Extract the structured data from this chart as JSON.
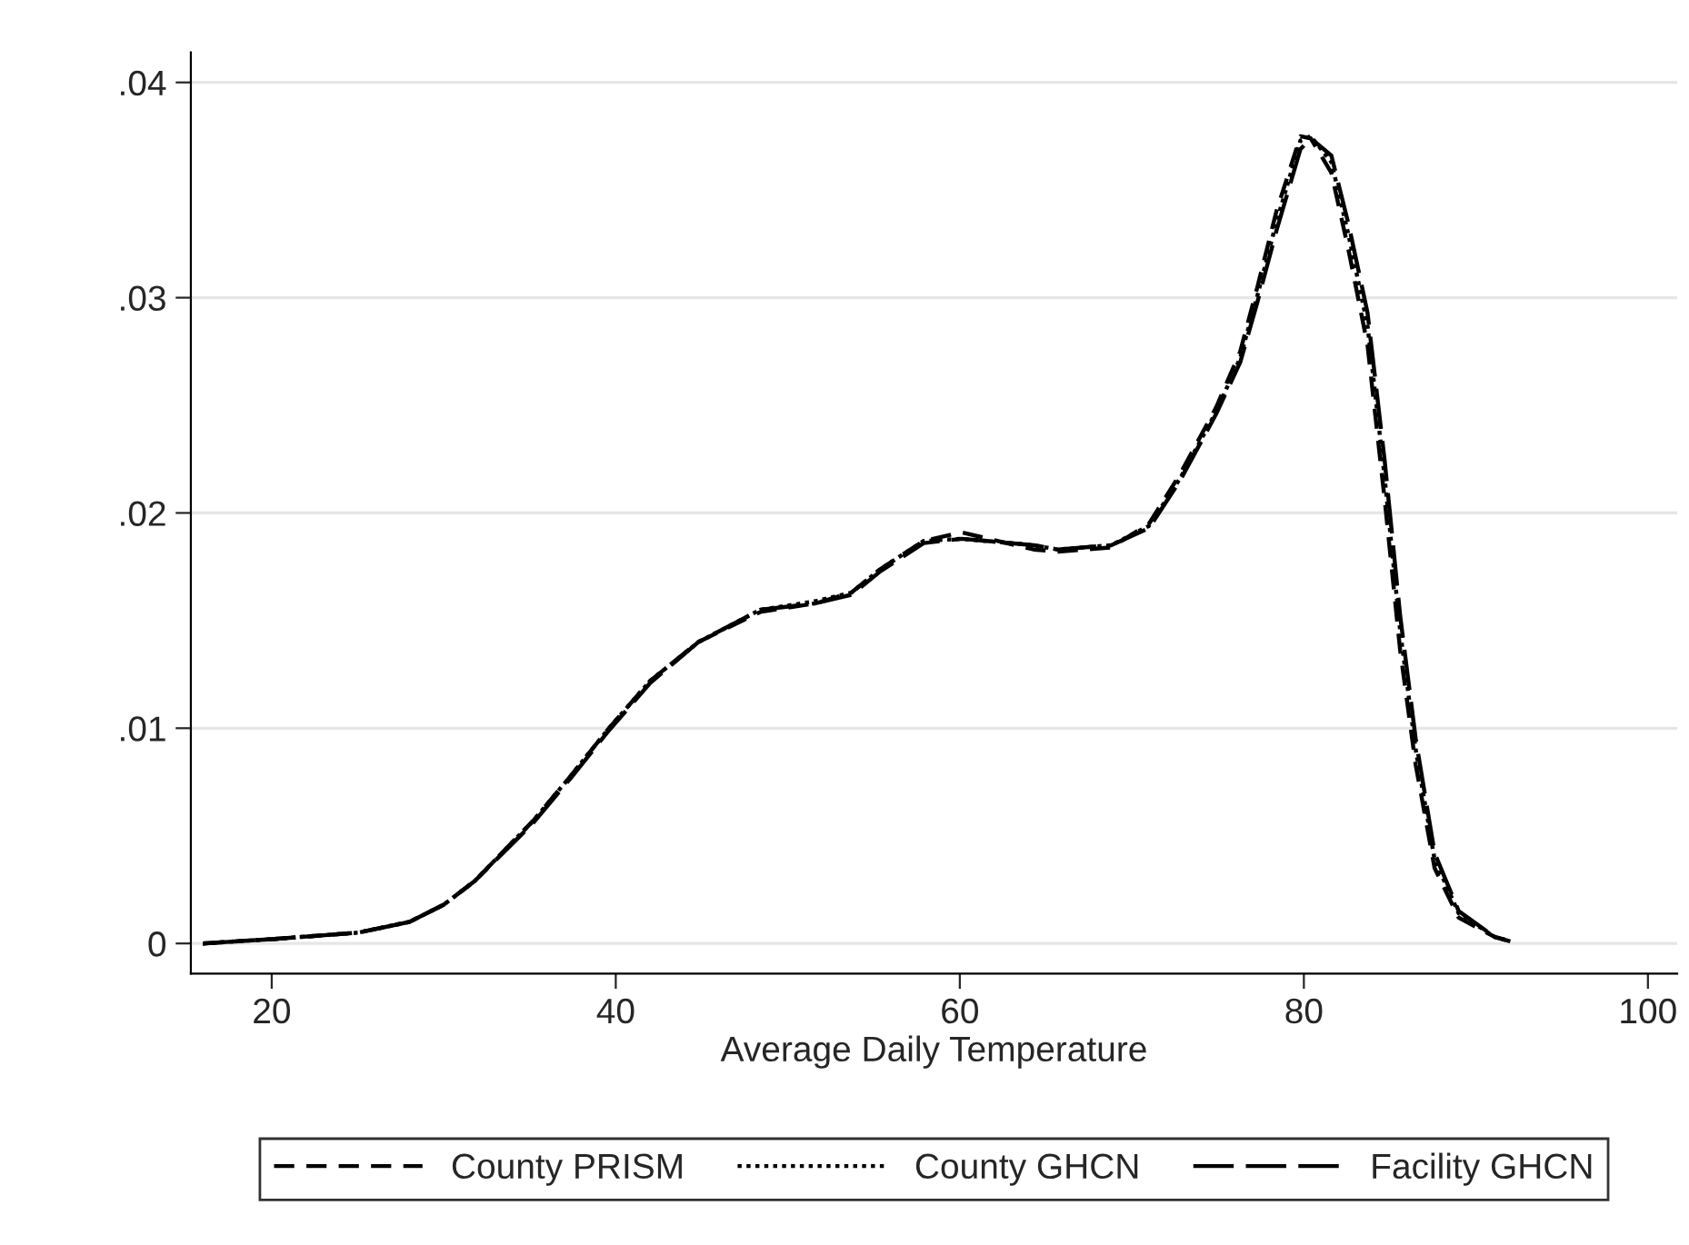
{
  "chart_data": {
    "type": "line",
    "xlabel": "Average Daily Temperature",
    "x": [
      16,
      20,
      25,
      28,
      30,
      31.8,
      35.2,
      37.4,
      39.5,
      42.0,
      44.8,
      48.4,
      51.6,
      53.7,
      55.4,
      57.9,
      60.1,
      64.3,
      65.7,
      68.8,
      71.0,
      72.8,
      74.9,
      76.3,
      77.3,
      78.4,
      79.8,
      80.4,
      81.6,
      82.6,
      83.7,
      84.7,
      85.6,
      86.5,
      87.6,
      89.0,
      91.1,
      92
    ],
    "series": [
      {
        "name": "County PRISM",
        "color": "#000000",
        "line_style": "dashed",
        "values": [
          0,
          0.0002,
          0.0005,
          0.001,
          0.0018,
          0.0029,
          0.0057,
          0.0078,
          0.0099,
          0.0122,
          0.014,
          0.0154,
          0.0158,
          0.0163,
          0.0174,
          0.0187,
          0.0191,
          0.0183,
          0.0182,
          0.0184,
          0.0195,
          0.0218,
          0.0249,
          0.0275,
          0.0305,
          0.034,
          0.0375,
          0.0374,
          0.0358,
          0.0322,
          0.0278,
          0.0206,
          0.0136,
          0.0083,
          0.0035,
          0.0012,
          0.0003,
          0.0001
        ]
      },
      {
        "name": "County GHCN",
        "color": "#000000",
        "line_style": "dotted",
        "values": [
          0,
          0.0002,
          0.0005,
          0.001,
          0.0018,
          0.0029,
          0.0057,
          0.0078,
          0.0099,
          0.0122,
          0.014,
          0.0155,
          0.0159,
          0.0163,
          0.0174,
          0.0187,
          0.0188,
          0.0185,
          0.0183,
          0.0185,
          0.0194,
          0.0216,
          0.0247,
          0.0272,
          0.0301,
          0.0335,
          0.0373,
          0.0375,
          0.0363,
          0.0329,
          0.0287,
          0.0216,
          0.0145,
          0.009,
          0.0039,
          0.0014,
          0.0003,
          0.0001
        ]
      },
      {
        "name": "Facility GHCN",
        "color": "#000000",
        "line_style": "longdash",
        "values": [
          0,
          0.0002,
          0.0005,
          0.001,
          0.0018,
          0.0029,
          0.0056,
          0.0077,
          0.0098,
          0.0121,
          0.014,
          0.0155,
          0.0158,
          0.0162,
          0.0173,
          0.0186,
          0.0188,
          0.0185,
          0.0183,
          0.0185,
          0.0193,
          0.0215,
          0.0246,
          0.027,
          0.0298,
          0.0331,
          0.0369,
          0.0374,
          0.0366,
          0.0334,
          0.0293,
          0.0224,
          0.0152,
          0.0095,
          0.0042,
          0.0015,
          0.0003,
          0.0001
        ]
      }
    ],
    "xlim": [
      15.3,
      101.7
    ],
    "ylim": [
      -0.0014,
      0.0414
    ],
    "xticks": [
      20,
      40,
      60,
      80,
      100
    ],
    "yticks": [
      {
        "value": 0,
        "label": "0"
      },
      {
        "value": 0.01,
        "label": ".01"
      },
      {
        "value": 0.02,
        "label": ".02"
      },
      {
        "value": 0.03,
        "label": ".03"
      },
      {
        "value": 0.04,
        "label": ".04"
      }
    ],
    "grid": "y",
    "legend": "bottom"
  }
}
